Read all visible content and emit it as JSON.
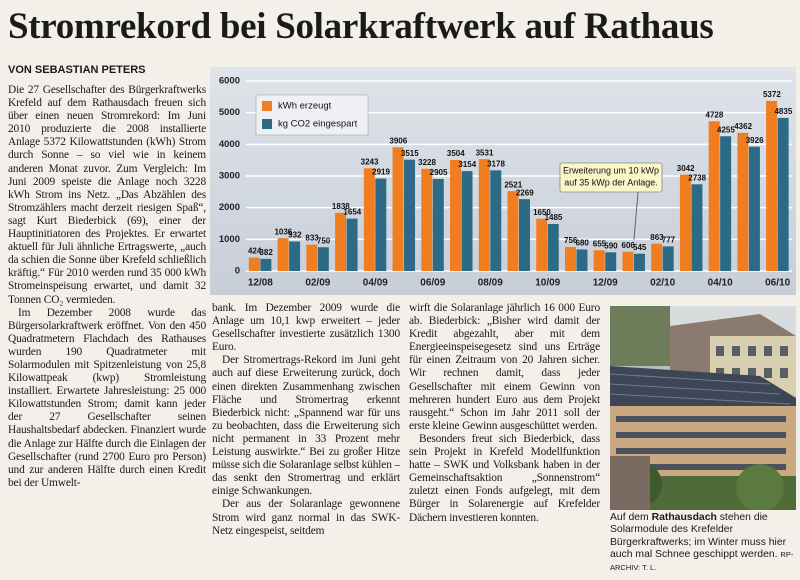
{
  "header": {
    "title": "Stromrekord bei Solarkraftwerk auf Rathaus",
    "byline": "VON SEBASTIAN PETERS"
  },
  "article": {
    "columns": [
      {
        "paragraphs": [
          "Die 27 Gesellschafter des Bürgerkraftwerks Krefeld auf dem Rathausdach freuen sich über einen neuen Stromrekord: Im Juni 2010 produzierte die 2008 installierte Anlage 5372 Kilowattstunden (kWh) Strom durch Sonne – so viel wie in keinem anderen Monat zuvor. Zum Vergleich: Im Juni 2009 speiste die Anlage noch 3228 kWh Strom ins Netz. „Das Abzählen des Stromzählers macht derzeit riesigen Spaß“, sagt Kurt Biederbick (69), einer der Hauptinitiatoren des Projektes. Er erwartet aktuell für Juli ähnliche Ertragswerte, „auch da schien die Sonne über Krefeld schließlich kräftig.“ Für 2010 werden rund 35 000 kWh Stromeinspeisung erwartet, und damit 32 Tonnen CO₂ vermieden.",
          "Im Dezember 2008 wurde das Bürgersolarkraftwerk eröffnet. Von den 450 Quadratmetern Flachdach des Rathauses wurden 190 Quadratmeter mit Solarmodulen mit Spitzenleistung von 25,8 Kilowattpeak (kwp) Stromleistung installiert. Erwartete Jahresleistung: 25 000 Kilowattstunden Strom; damit kann jeder der 27 Gesellschafter seinen Haushaltsbedarf abdecken. Finanziert wurde die Anlage zur Hälfte durch die Einlagen der Gesellschafter (rund 2700 Euro pro Person) und zur anderen Hälfte durch einen Kredit bei der Umwelt-"
        ]
      },
      {
        "paragraphs": [
          "bank. Im Dezember 2009 wurde die Anlage um 10,1 kwp erweitert – jeder Gesellschafter investierte zusätzlich 1300 Euro.",
          "Der Stromertrags-Rekord im Juni geht auch auf diese Erweiterung zurück, doch einen direkten Zusammenhang zwischen Fläche und Stromertrag erkennt Biederbick nicht: „Spannend war für uns zu beobachten, dass die Erweiterung sich nicht permanent in 33 Prozent mehr Leistung auswirkte.“ Bei zu großer Hitze müsse sich die Solaranlage selbst kühlen – das senkt den Stromertrag und erklärt einige Schwankungen.",
          "Der aus der Solaranlage gewonnene Strom wird ganz normal in das SWK-Netz eingespeist, seitdem"
        ]
      },
      {
        "paragraphs": [
          "wirft die Solaranlage jährlich 16 000 Euro ab. Biederbick: „Bisher wird damit der Kredit abgezahlt, aber mit dem Energieeinspeisegesetz sind uns Erträge für einen Zeitraum von 20 Jahren sicher. Wir rechnen damit, dass jeder Gesellschafter mit einem Gewinn von mehreren hundert Euro aus dem Projekt rausgeht.“ Schon im Jahr 2011 soll der erste kleine Gewinn ausgeschüttet werden.",
          "Besonders freut sich Biederbick, dass sein Projekt in Krefeld Modellfunktion hatte – SWK und Volksbank haben in der Gemeinschaftsaktion „Sonnenstrom“ zuletzt einen Fonds aufgelegt, mit dem Bürger in Solarenergie auf Krefelder Dächern investieren konnten."
        ]
      }
    ]
  },
  "chart_data": {
    "type": "bar",
    "categories": [
      "12/08",
      null,
      "02/09",
      null,
      "04/09",
      null,
      "06/09",
      null,
      "08/09",
      null,
      "10/09",
      null,
      "12/09",
      null,
      "02/10",
      null,
      "04/10",
      null,
      "06/10"
    ],
    "series": [
      {
        "name": "kWh erzeugt",
        "color": "#f07d1f",
        "values": [
          424,
          1036,
          833,
          1838,
          3243,
          3906,
          3228,
          3504,
          3531,
          2521,
          1650,
          756,
          655,
          606,
          863,
          3042,
          4728,
          4362,
          5372
        ]
      },
      {
        "name": "kg CO2 eingespart",
        "color": "#2c6a86",
        "values": [
          382,
          932,
          750,
          1654,
          2919,
          3515,
          2905,
          3154,
          3178,
          2269,
          1485,
          680,
          590,
          545,
          777,
          2738,
          4255,
          3926,
          4835
        ]
      }
    ],
    "ylim": [
      0,
      6000
    ],
    "yticks": [
      0,
      1000,
      2000,
      3000,
      4000,
      5000,
      6000
    ],
    "grid": true,
    "legend": "top-left",
    "annotation": [
      "Erweiterung um 10 kWp",
      "auf 35 kWp der Anlage."
    ]
  },
  "photo": {
    "caption": {
      "before": "Auf dem",
      "bold": "Rathausdach",
      "after": "stehen die Solarmodule des Krefelder Bürgerkraftwerks; im Winter muss hier auch mal Schnee geschippt werden."
    },
    "credit": "RP-ARCHIV: T. L."
  }
}
